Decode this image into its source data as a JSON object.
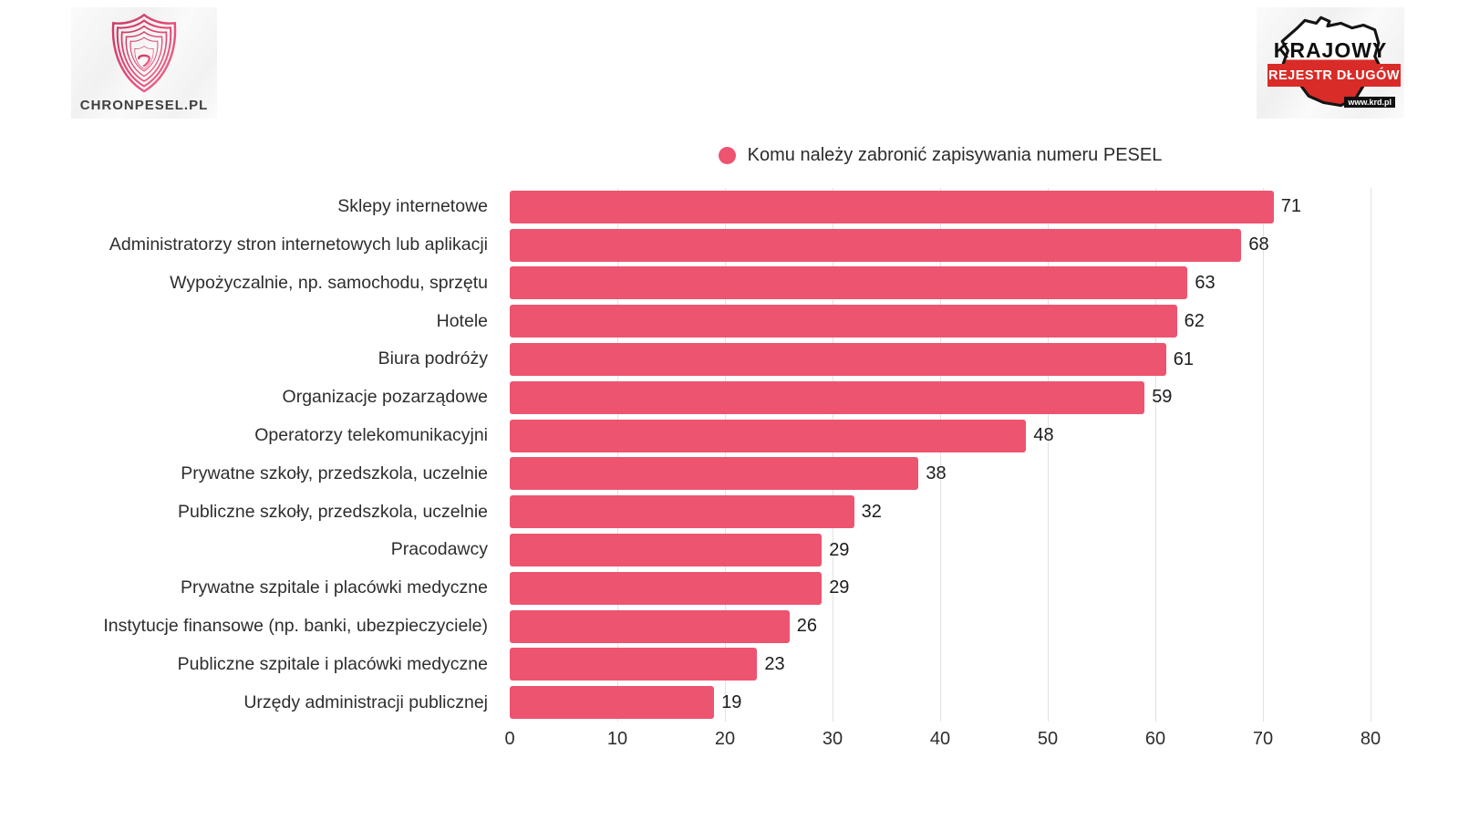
{
  "header": {
    "left_logo": {
      "brand": "CHRONPESEL.PL"
    },
    "right_logo": {
      "line1": "KRAJOWY",
      "line2": "REJESTR DŁUGÓW",
      "url": "www.krd.pl"
    }
  },
  "legend": {
    "label": "Komu należy zabronić zapisywania numeru PESEL"
  },
  "chart_data": {
    "type": "bar",
    "orientation": "horizontal",
    "title": "Komu należy zabronić zapisywania numeru PESEL",
    "categories": [
      "Sklepy internetowe",
      "Administratorzy stron internetowych lub aplikacji",
      "Wypożyczalnie, np. samochodu, sprzętu",
      "Hotele",
      "Biura podróży",
      "Organizacje pozarządowe",
      "Operatorzy telekomunikacyjni",
      "Prywatne szkoły, przedszkola, uczelnie",
      "Publiczne szkoły, przedszkola, uczelnie",
      "Pracodawcy",
      "Prywatne szpitale i placówki medyczne",
      "Instytucje finansowe (np. banki, ubezpieczyciele)",
      "Publiczne szpitale i placówki medyczne",
      "Urzędy administracji publicznej"
    ],
    "values": [
      71,
      68,
      63,
      62,
      61,
      59,
      48,
      38,
      32,
      29,
      29,
      26,
      23,
      19
    ],
    "xlabel": "",
    "ylabel": "",
    "xlim": [
      0,
      80
    ],
    "x_ticks": [
      0,
      10,
      20,
      30,
      40,
      50,
      60,
      70,
      80
    ],
    "grid": true,
    "legend_position": "top-center",
    "bar_labels_shown": true
  },
  "colors": {
    "bar": "#ed5470",
    "legend_dot": "#ed5470",
    "grid": "#e2e2e2",
    "text": "#2e2e2e",
    "krd_red": "#d92b27"
  }
}
